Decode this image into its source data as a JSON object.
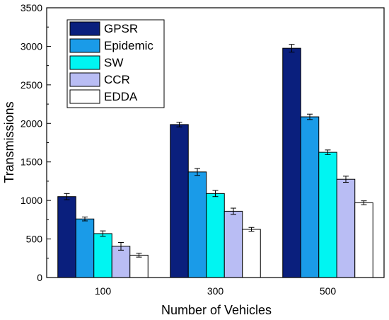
{
  "chart_data": {
    "type": "bar",
    "title": "",
    "xlabel": "Number of Vehicles",
    "ylabel": "Transmissions",
    "categories": [
      "100",
      "300",
      "500"
    ],
    "ylim": [
      0,
      3500
    ],
    "yticks": [
      0,
      500,
      1000,
      1500,
      2000,
      2500,
      3000,
      3500
    ],
    "grid": false,
    "legend_position": "top-left",
    "series": [
      {
        "name": "GPSR",
        "color": "#0a1f7d",
        "values": [
          1050,
          1985,
          2975
        ],
        "errors": [
          40,
          30,
          50
        ]
      },
      {
        "name": "Epidemic",
        "color": "#1a9be8",
        "values": [
          760,
          1370,
          2085
        ],
        "errors": [
          25,
          45,
          35
        ]
      },
      {
        "name": "SW",
        "color": "#00f5f2",
        "values": [
          570,
          1090,
          1625
        ],
        "errors": [
          35,
          40,
          30
        ]
      },
      {
        "name": "CCR",
        "color": "#b9bdf4",
        "values": [
          405,
          860,
          1275
        ],
        "errors": [
          50,
          40,
          40
        ]
      },
      {
        "name": "EDDA",
        "color": "#ffffff",
        "values": [
          290,
          625,
          970
        ],
        "errors": [
          25,
          25,
          25
        ]
      }
    ]
  }
}
